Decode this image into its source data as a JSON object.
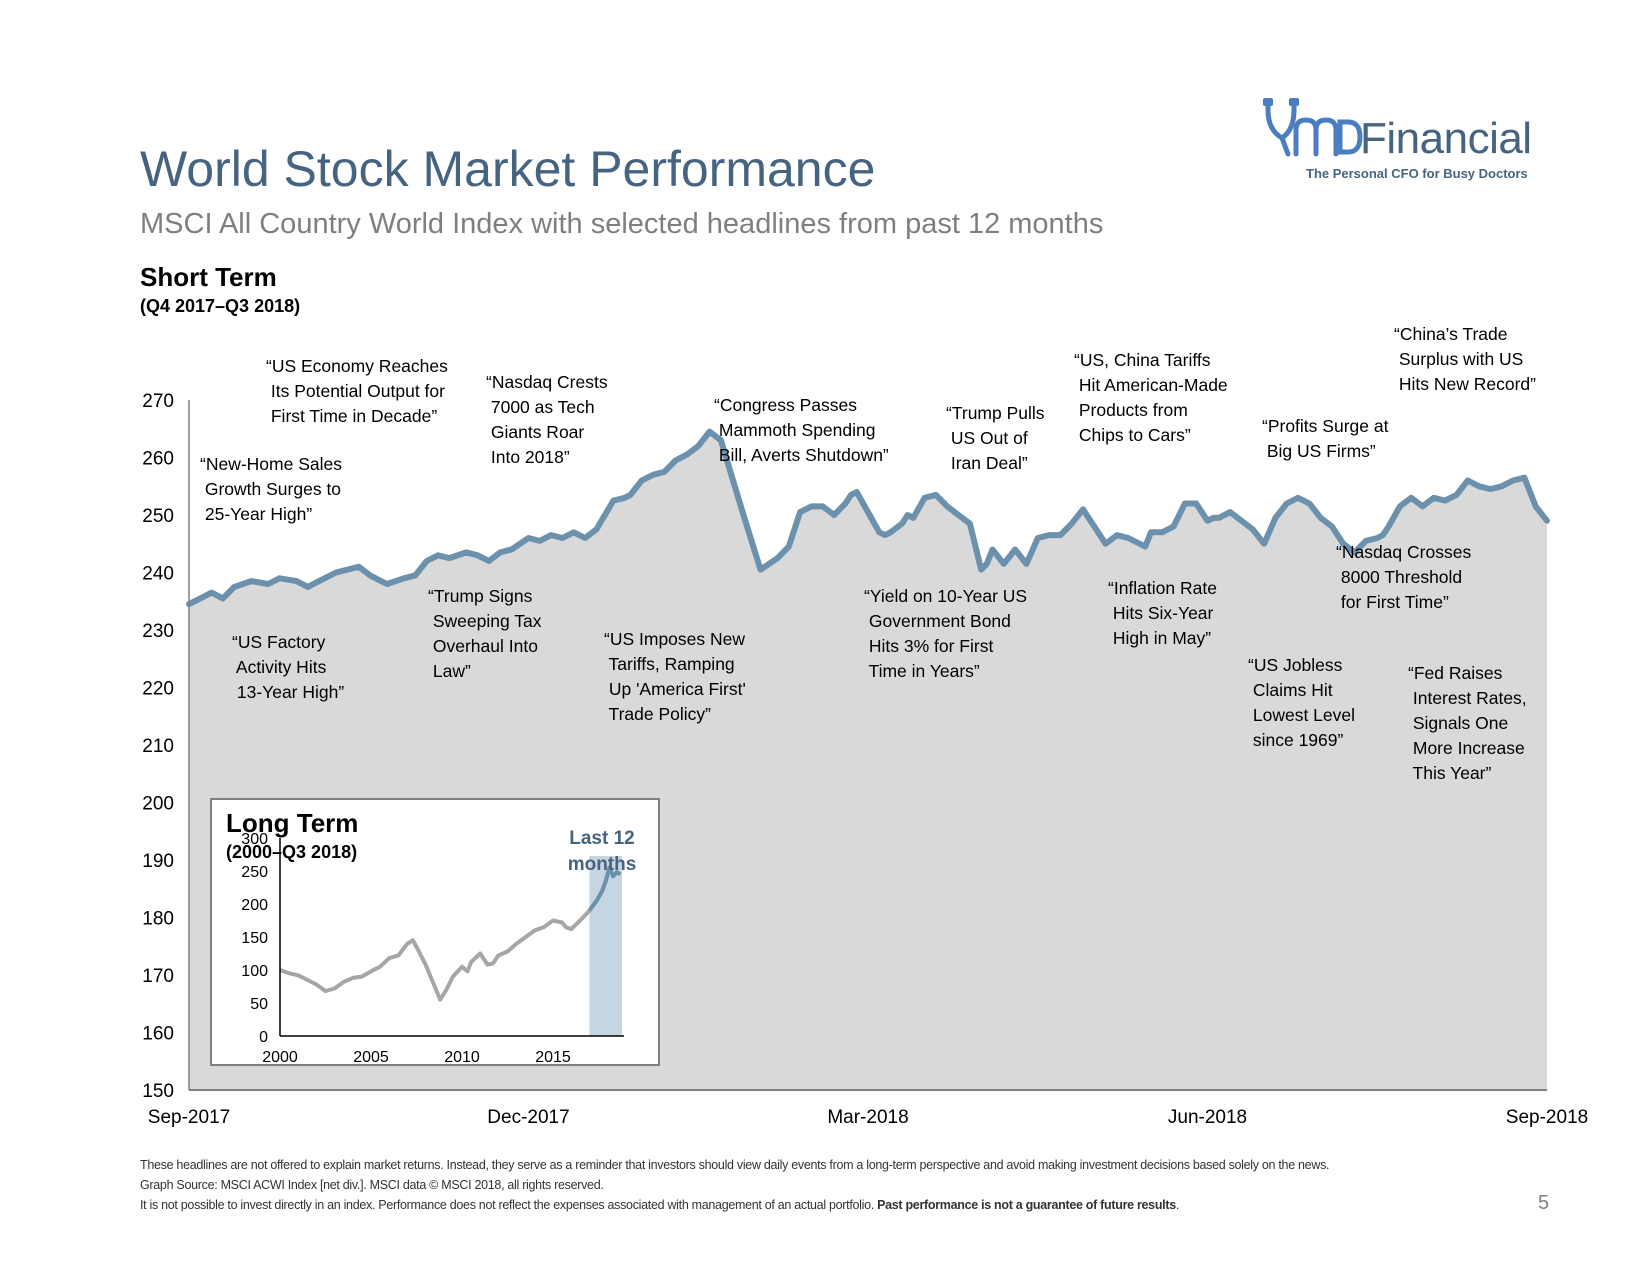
{
  "header": {
    "title": "World Stock Market Performance",
    "subtitle": "MSCI All Country World Index with selected headlines from past 12 months",
    "short_term_label": "Short Term",
    "short_term_range": "(Q4 2017–Q3 2018)"
  },
  "logo": {
    "name": "Financial",
    "tagline": "The Personal CFO for Busy Doctors",
    "brand_color": "#4a7ec0"
  },
  "colors": {
    "title": "#466480",
    "subtitle": "#7f7f7f",
    "area_fill": "#d9d9d9",
    "line": "#6b91ad",
    "inset_line": "#a6a6a6",
    "inset_highlight": "#c5d5e2"
  },
  "chart_data": [
    {
      "type": "area",
      "xlabel": "",
      "ylabel": "",
      "ylim": [
        150,
        270
      ],
      "yticks": [
        "150",
        "160",
        "170",
        "180",
        "190",
        "200",
        "210",
        "220",
        "230",
        "240",
        "250",
        "260",
        "270"
      ],
      "xticks": [
        "Sep-2017",
        "Dec-2017",
        "Mar-2018",
        "Jun-2018",
        "Sep-2018"
      ],
      "xrange_months": [
        0,
        12
      ],
      "grid": false,
      "x_month": [
        0.0,
        0.1,
        0.2,
        0.3,
        0.4,
        0.55,
        0.7,
        0.8,
        0.95,
        1.05,
        1.15,
        1.3,
        1.4,
        1.5,
        1.6,
        1.75,
        1.9,
        2.0,
        2.1,
        2.2,
        2.3,
        2.45,
        2.55,
        2.65,
        2.75,
        2.85,
        3.0,
        3.1,
        3.2,
        3.3,
        3.4,
        3.5,
        3.6,
        3.75,
        3.85,
        3.9,
        4.0,
        4.1,
        4.2,
        4.3,
        4.4,
        4.5,
        4.6,
        4.7,
        4.9,
        5.05,
        5.2,
        5.25,
        5.3,
        5.4,
        5.5,
        5.55,
        5.6,
        5.7,
        5.8,
        5.85,
        5.9,
        6.0,
        6.1,
        6.15,
        6.2,
        6.3,
        6.35,
        6.4,
        6.5,
        6.6,
        6.7,
        6.8,
        6.9,
        7.0,
        7.05,
        7.1,
        7.2,
        7.3,
        7.4,
        7.5,
        7.6,
        7.7,
        7.8,
        7.9,
        8.0,
        8.1,
        8.2,
        8.3,
        8.45,
        8.5,
        8.6,
        8.7,
        8.8,
        8.9,
        9.0,
        9.05,
        9.1,
        9.2,
        9.3,
        9.4,
        9.5,
        9.6,
        9.7,
        9.8,
        9.9,
        10.0,
        10.1,
        10.2,
        10.3,
        10.4,
        10.5,
        10.55,
        10.6,
        10.7,
        10.8,
        10.9,
        11.0,
        11.1,
        11.2,
        11.3,
        11.4,
        11.5,
        11.6,
        11.7,
        11.8,
        11.9,
        12.0
      ],
      "values": [
        234.5,
        235.5,
        236.5,
        235.5,
        237.5,
        238.5,
        238.0,
        239.0,
        238.5,
        237.5,
        238.5,
        240.0,
        240.5,
        241.0,
        239.5,
        238.0,
        239.0,
        239.5,
        242.0,
        243.0,
        242.5,
        243.5,
        243.0,
        242.0,
        243.5,
        244.0,
        246.0,
        245.5,
        246.5,
        246.0,
        247.0,
        246.0,
        247.5,
        252.5,
        253.0,
        253.5,
        256.0,
        257.0,
        257.5,
        259.5,
        260.5,
        262.0,
        264.5,
        263.0,
        250.0,
        240.5,
        242.5,
        243.5,
        244.5,
        250.5,
        251.5,
        251.5,
        251.5,
        250.0,
        252.0,
        253.5,
        254.0,
        250.5,
        247.0,
        246.5,
        247.0,
        248.5,
        250.0,
        249.5,
        253.0,
        253.5,
        251.5,
        250.0,
        248.5,
        240.5,
        241.5,
        244.0,
        241.5,
        244.0,
        241.5,
        246.0,
        246.5,
        246.5,
        248.5,
        251.0,
        248.0,
        245.0,
        246.5,
        246.0,
        244.5,
        247.0,
        247.0,
        248.0,
        252.0,
        252.0,
        249.0,
        249.5,
        249.5,
        250.5,
        249.0,
        247.5,
        245.0,
        249.5,
        252.0,
        253.0,
        252.0,
        249.5,
        248.0,
        245.0,
        243.5,
        245.5,
        246.0,
        246.5,
        248.0,
        251.5,
        253.0,
        251.5,
        253.0,
        252.5,
        253.5,
        256.0,
        255.0,
        254.5,
        255.0,
        256.0,
        256.5,
        251.5,
        249.0
      ]
    },
    {
      "type": "line",
      "title": "Long Term",
      "subtitle": "(2000–Q3 2018)",
      "annotation": "Last 12 months",
      "ylim": [
        0,
        300
      ],
      "yticks": [
        "0",
        "50",
        "100",
        "150",
        "200",
        "250",
        "300"
      ],
      "xticks": [
        "2000",
        "2005",
        "2010",
        "2015"
      ],
      "highlight_years": [
        2017.0,
        2018.0
      ],
      "x_year": [
        2000.0,
        2000.5,
        2001.0,
        2001.5,
        2002.0,
        2002.5,
        2003.0,
        2003.5,
        2004.0,
        2004.5,
        2005.0,
        2005.5,
        2006.0,
        2006.5,
        2007.0,
        2007.3,
        2007.6,
        2008.0,
        2008.5,
        2008.8,
        2009.1,
        2009.5,
        2010.0,
        2010.3,
        2010.5,
        2011.0,
        2011.4,
        2011.7,
        2012.0,
        2012.5,
        2013.0,
        2013.5,
        2014.0,
        2014.5,
        2015.0,
        2015.5,
        2015.7,
        2016.0,
        2016.3,
        2016.6,
        2017.0,
        2017.4,
        2017.7,
        2017.9,
        2018.1,
        2018.3,
        2018.5,
        2018.7
      ],
      "values": [
        100,
        95,
        92,
        85,
        78,
        68,
        72,
        82,
        88,
        90,
        98,
        105,
        118,
        122,
        140,
        145,
        130,
        108,
        75,
        55,
        68,
        90,
        105,
        98,
        112,
        125,
        108,
        110,
        122,
        128,
        140,
        150,
        160,
        165,
        175,
        172,
        165,
        162,
        170,
        178,
        190,
        205,
        220,
        235,
        255,
        242,
        248,
        245
      ]
    }
  ],
  "headlines": [
    "“New-Home Sales\n Growth Surges to\n 25-Year High”",
    "“US Economy Reaches\n Its Potential Output for\n First Time in Decade”",
    "“US Factory\n Activity Hits\n 13-Year High”",
    "“Trump Signs\n Sweeping Tax\n Overhaul Into\n Law”",
    "“Nasdaq Crests\n 7000 as Tech\n Giants Roar\n Into 2018”",
    "“US Imposes New\n Tariffs, Ramping\n Up 'America First'\n Trade Policy”",
    "“Congress Passes\n Mammoth Spending\n Bill, Averts Shutdown”",
    "“Yield on 10-Year US\n Government Bond\n Hits 3% for First\n Time in Years”",
    "“Trump Pulls\n US Out of\n Iran Deal”",
    "“US, China Tariffs\n Hit American-Made\n Products from\n Chips to Cars”",
    "“Inflation Rate\n Hits Six-Year\n High in May”",
    "“US Jobless\n Claims Hit\n Lowest Level\n since 1969”",
    "“Profits Surge at\n Big US Firms”",
    "“Nasdaq Crosses\n 8000 Threshold\n for First Time”",
    "“China’s Trade\n Surplus with US\n Hits New Record”",
    "“Fed Raises\n Interest Rates,\n Signals One\n More Increase\n This Year”"
  ],
  "footer": {
    "line1": "These headlines are not offered to explain market returns. Instead, they serve as a reminder that investors should view daily events from a long-term perspective and avoid making investment decisions based solely on the news.",
    "line2": "Graph Source: MSCI ACWI Index [net div.]. MSCI data © MSCI 2018, all rights reserved.",
    "line3": "It is not possible to invest directly in an index. Performance does not reflect the expenses associated with management of an actual portfolio. ",
    "line3_bold": "Past performance is not a guarantee of future results",
    "line3_end": ".",
    "page_number": "5"
  }
}
